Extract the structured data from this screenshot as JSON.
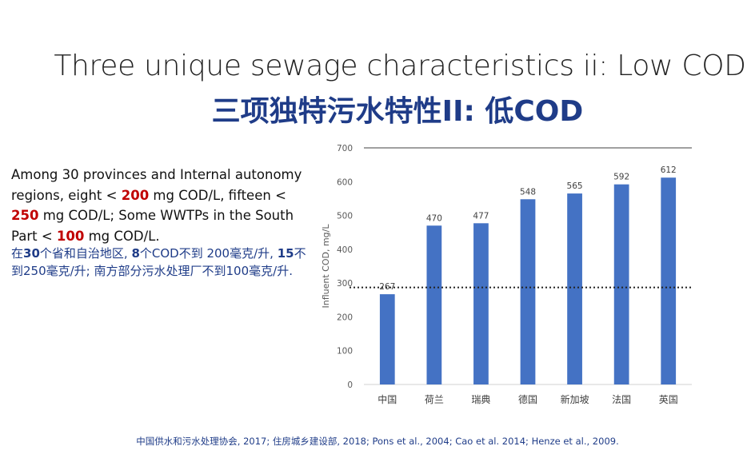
{
  "slide": {
    "title_en": "Three unique sewage characteristics ii: Low COD",
    "title_zh": "三项独特污水特性II: 低COD",
    "body_en": [
      {
        "t": "Among 30 provinces and Internal autonomy regions, eight < ",
        "hl": false
      },
      {
        "t": "200",
        "hl": true
      },
      {
        "t": " mg COD/L, fifteen  < ",
        "hl": false
      },
      {
        "t": "250",
        "hl": true
      },
      {
        "t": " mg COD/L; Some WWTPs in the South Part < ",
        "hl": false
      },
      {
        "t": "100",
        "hl": true
      },
      {
        "t": " mg COD/L.",
        "hl": false
      }
    ],
    "body_zh": [
      {
        "t": "在",
        "b": false
      },
      {
        "t": "30",
        "b": true
      },
      {
        "t": "个省和自治地区, ",
        "b": false
      },
      {
        "t": "8",
        "b": true
      },
      {
        "t": "个COD不到 200毫克/升, ",
        "b": false
      },
      {
        "t": "15",
        "b": true
      },
      {
        "t": "不到250毫克/升; 南方部分污水处理厂不到100毫克/升.",
        "b": false
      }
    ],
    "footer": "中国供水和污水处理协会, 2017; 住房城乡建设部, 2018; Pons et al., 2004; Cao et al. 2014; Henze et al., 2009."
  },
  "chart_data": {
    "type": "bar",
    "categories": [
      "中国",
      "荷兰",
      "瑞典",
      "德国",
      "新加坡",
      "法国",
      "英国"
    ],
    "values": [
      267,
      470,
      477,
      548,
      565,
      592,
      612
    ],
    "data_labels": [
      "267",
      "470",
      "477",
      "548",
      "565",
      "592",
      "612"
    ],
    "ylabel": "Influent COD, mg/L",
    "xlabel": "",
    "ylim": [
      0,
      700
    ],
    "yticks": [
      0,
      100,
      200,
      300,
      400,
      500,
      600,
      700
    ],
    "reference_line": 287,
    "reference_line_style": "dotted",
    "grid": false,
    "colors": {
      "bar": "#4472c4",
      "reference": "#222222",
      "axis_text": "#595959"
    }
  }
}
